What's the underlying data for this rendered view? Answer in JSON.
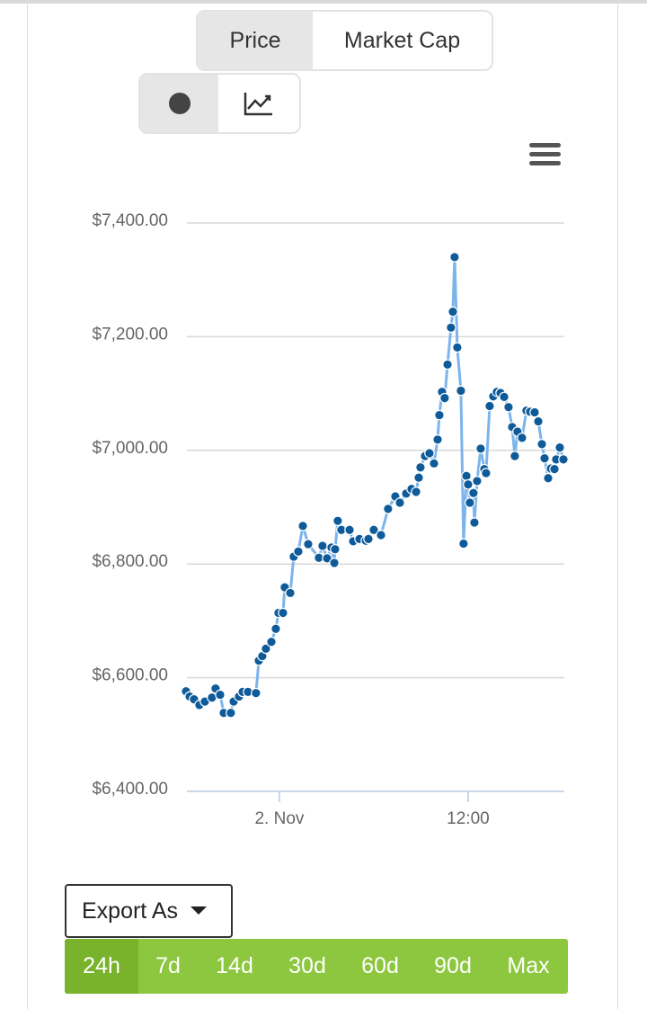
{
  "tabs": [
    "Price",
    "Market Cap"
  ],
  "export": "Export As",
  "ranges": [
    "24h",
    "7d",
    "14d",
    "30d",
    "60d",
    "90d",
    "Max"
  ],
  "active_range": 0,
  "chart_data": {
    "type": "line",
    "color": "#7cb5ec",
    "marker_color": "#0f5b9a",
    "grid": true,
    "ylim": [
      6400,
      7400
    ],
    "yticks": [
      {
        "value": 6400,
        "label": "$6,400.00"
      },
      {
        "value": 6600,
        "label": "$6,600.00"
      },
      {
        "value": 6800,
        "label": "$6,800.00"
      },
      {
        "value": 7000,
        "label": "$7,000.00"
      },
      {
        "value": 7200,
        "label": "$7,200.00"
      },
      {
        "value": 7400,
        "label": "$7,400.00"
      }
    ],
    "xlim": [
      -5.94,
      18.06
    ],
    "xticks": [
      {
        "value": 0,
        "label": "2. Nov"
      },
      {
        "value": 12,
        "label": "12:00"
      }
    ],
    "x": [
      -5.94,
      -5.71,
      -5.43,
      -5.09,
      -4.74,
      -4.29,
      -4.06,
      -3.77,
      -3.54,
      -3.09,
      -2.91,
      -2.57,
      -2.34,
      -2.0,
      -1.49,
      -1.31,
      -1.09,
      -0.86,
      -0.51,
      -0.23,
      -0.06,
      0.23,
      0.34,
      0.69,
      0.91,
      1.2,
      1.49,
      1.83,
      2.51,
      2.74,
      3.03,
      3.31,
      3.49,
      3.54,
      3.71,
      3.94,
      4.46,
      4.69,
      5.09,
      5.49,
      5.66,
      6.0,
      6.46,
      6.91,
      7.37,
      7.66,
      8.06,
      8.4,
      8.69,
      8.86,
      8.97,
      9.26,
      9.54,
      9.83,
      10.06,
      10.17,
      10.34,
      10.51,
      10.69,
      10.91,
      11.03,
      11.14,
      11.31,
      11.54,
      11.71,
      11.89,
      12.0,
      12.11,
      12.34,
      12.4,
      12.57,
      12.8,
      13.03,
      13.14,
      13.37,
      13.6,
      13.83,
      14.06,
      14.29,
      14.57,
      14.8,
      14.97,
      15.14,
      15.43,
      15.71,
      15.94,
      16.23,
      16.46,
      16.69,
      16.86,
      17.09,
      17.26,
      17.49,
      17.6,
      17.83,
      18.06
    ],
    "values": [
      6576,
      6567,
      6562,
      6552,
      6558,
      6565,
      6581,
      6570,
      6538,
      6538,
      6558,
      6567,
      6575,
      6575,
      6573,
      6630,
      6638,
      6651,
      6663,
      6686,
      6714,
      6714,
      6759,
      6749,
      6813,
      6822,
      6867,
      6835,
      6811,
      6832,
      6810,
      6829,
      6802,
      6826,
      6876,
      6860,
      6860,
      6840,
      6844,
      6841,
      6844,
      6860,
      6851,
      6897,
      6919,
      6908,
      6924,
      6932,
      6927,
      6952,
      6970,
      6990,
      6995,
      6977,
      7019,
      7062,
      7103,
      7092,
      7151,
      7216,
      7244,
      7340,
      7181,
      7105,
      6836,
      6955,
      6940,
      6908,
      6925,
      6873,
      6946,
      7003,
      6967,
      6960,
      7078,
      7095,
      7103,
      7101,
      7094,
      7076,
      7041,
      6990,
      7033,
      7022,
      7070,
      7068,
      7067,
      7051,
      7011,
      6986,
      6951,
      6968,
      6967,
      6984,
      7005,
      6984
    ]
  }
}
